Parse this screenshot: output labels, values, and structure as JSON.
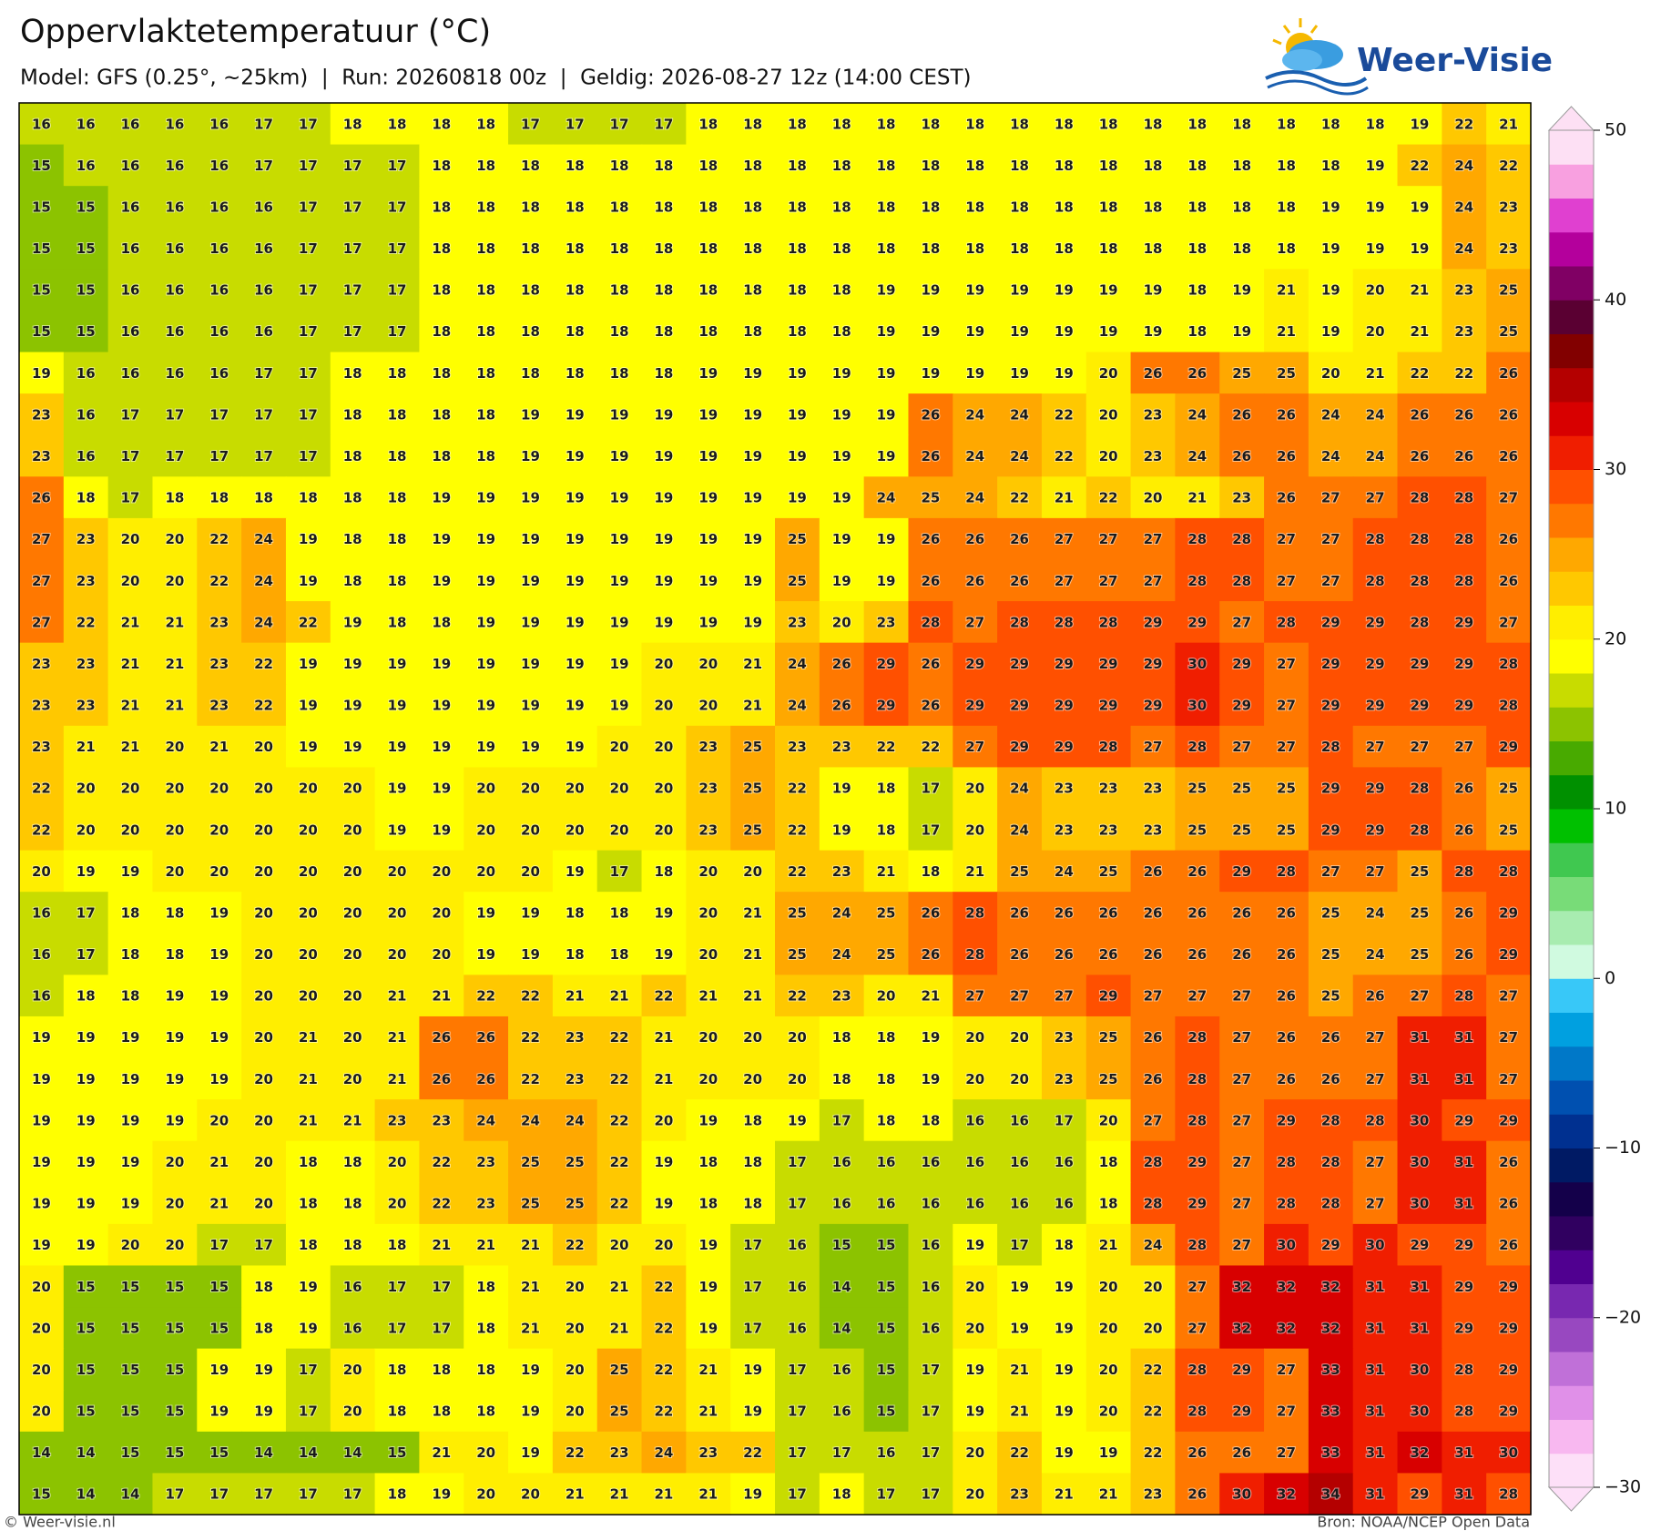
{
  "header": {
    "title": "Oppervlaktetemperatuur (°C)",
    "subtitle": "Model: GFS (0.25°, ~25km)  |  Run: 20260818 00z  |  Geldig: 2026-08-27 12z (14:00 CEST)"
  },
  "logo": "Weer-Visie",
  "map": {
    "values": [
      [
        16,
        16,
        16,
        16,
        16,
        17,
        17,
        18,
        18,
        18,
        18,
        17,
        17,
        17,
        17,
        18,
        18,
        18,
        18,
        18,
        18,
        18,
        18,
        18,
        18,
        18,
        18,
        18,
        18,
        18,
        18,
        19,
        22,
        21
      ],
      [
        15,
        16,
        16,
        16,
        16,
        17,
        17,
        17,
        17,
        18,
        18,
        18,
        18,
        18,
        18,
        18,
        18,
        18,
        18,
        18,
        18,
        18,
        18,
        18,
        18,
        18,
        18,
        18,
        18,
        18,
        19,
        22,
        24,
        22
      ],
      [
        15,
        15,
        16,
        16,
        16,
        16,
        17,
        17,
        17,
        18,
        18,
        18,
        18,
        18,
        18,
        18,
        18,
        18,
        18,
        18,
        18,
        18,
        18,
        18,
        18,
        18,
        18,
        18,
        18,
        19,
        19,
        19,
        24,
        23
      ],
      [
        15,
        15,
        16,
        16,
        16,
        16,
        17,
        17,
        17,
        18,
        18,
        18,
        18,
        18,
        18,
        18,
        18,
        18,
        18,
        18,
        18,
        18,
        18,
        18,
        18,
        18,
        18,
        18,
        18,
        19,
        19,
        19,
        24,
        23
      ],
      [
        15,
        15,
        16,
        16,
        16,
        16,
        17,
        17,
        17,
        18,
        18,
        18,
        18,
        18,
        18,
        18,
        18,
        18,
        18,
        19,
        19,
        19,
        19,
        19,
        19,
        19,
        18,
        19,
        21,
        19,
        20,
        21,
        23,
        25
      ],
      [
        15,
        15,
        16,
        16,
        16,
        16,
        17,
        17,
        17,
        18,
        18,
        18,
        18,
        18,
        18,
        18,
        18,
        18,
        18,
        19,
        19,
        19,
        19,
        19,
        19,
        19,
        18,
        19,
        21,
        19,
        20,
        21,
        23,
        25
      ],
      [
        19,
        16,
        16,
        16,
        16,
        17,
        17,
        18,
        18,
        18,
        18,
        18,
        18,
        18,
        18,
        19,
        19,
        19,
        19,
        19,
        19,
        19,
        19,
        19,
        20,
        26,
        26,
        25,
        25,
        20,
        21,
        22,
        22,
        26
      ],
      [
        23,
        16,
        17,
        17,
        17,
        17,
        17,
        18,
        18,
        18,
        18,
        19,
        19,
        19,
        19,
        19,
        19,
        19,
        19,
        19,
        26,
        24,
        24,
        22,
        20,
        23,
        24,
        26,
        26,
        24,
        24,
        26,
        26,
        26
      ],
      [
        23,
        16,
        17,
        17,
        17,
        17,
        17,
        18,
        18,
        18,
        18,
        19,
        19,
        19,
        19,
        19,
        19,
        19,
        19,
        19,
        26,
        24,
        24,
        22,
        20,
        23,
        24,
        26,
        26,
        24,
        24,
        26,
        26,
        26
      ],
      [
        26,
        18,
        17,
        18,
        18,
        18,
        18,
        18,
        18,
        19,
        19,
        19,
        19,
        19,
        19,
        19,
        19,
        19,
        19,
        24,
        25,
        24,
        22,
        21,
        22,
        20,
        21,
        23,
        26,
        27,
        27,
        28,
        28,
        27
      ],
      [
        27,
        23,
        20,
        20,
        22,
        24,
        19,
        18,
        18,
        19,
        19,
        19,
        19,
        19,
        19,
        19,
        19,
        25,
        19,
        19,
        26,
        26,
        26,
        27,
        27,
        27,
        28,
        28,
        27,
        27,
        28,
        28,
        28,
        26
      ],
      [
        27,
        23,
        20,
        20,
        22,
        24,
        19,
        18,
        18,
        19,
        19,
        19,
        19,
        19,
        19,
        19,
        19,
        25,
        19,
        19,
        26,
        26,
        26,
        27,
        27,
        27,
        28,
        28,
        27,
        27,
        28,
        28,
        28,
        26
      ],
      [
        27,
        22,
        21,
        21,
        23,
        24,
        22,
        19,
        18,
        18,
        19,
        19,
        19,
        19,
        19,
        19,
        19,
        23,
        20,
        23,
        28,
        27,
        28,
        28,
        28,
        29,
        29,
        27,
        28,
        29,
        29,
        28,
        29,
        27
      ],
      [
        23,
        23,
        21,
        21,
        23,
        22,
        19,
        19,
        19,
        19,
        19,
        19,
        19,
        19,
        20,
        20,
        21,
        24,
        26,
        29,
        26,
        29,
        29,
        29,
        29,
        29,
        30,
        29,
        27,
        29,
        29,
        29,
        29,
        28
      ],
      [
        23,
        23,
        21,
        21,
        23,
        22,
        19,
        19,
        19,
        19,
        19,
        19,
        19,
        19,
        20,
        20,
        21,
        24,
        26,
        29,
        26,
        29,
        29,
        29,
        29,
        29,
        30,
        29,
        27,
        29,
        29,
        29,
        29,
        28
      ],
      [
        23,
        21,
        21,
        20,
        21,
        20,
        19,
        19,
        19,
        19,
        19,
        19,
        19,
        20,
        20,
        23,
        25,
        23,
        23,
        22,
        22,
        27,
        29,
        29,
        28,
        27,
        28,
        27,
        27,
        28,
        27,
        27,
        27,
        29
      ],
      [
        22,
        20,
        20,
        20,
        20,
        20,
        20,
        20,
        19,
        19,
        20,
        20,
        20,
        20,
        20,
        23,
        25,
        22,
        19,
        18,
        17,
        20,
        24,
        23,
        23,
        23,
        25,
        25,
        25,
        29,
        29,
        28,
        26,
        25
      ],
      [
        22,
        20,
        20,
        20,
        20,
        20,
        20,
        20,
        19,
        19,
        20,
        20,
        20,
        20,
        20,
        23,
        25,
        22,
        19,
        18,
        17,
        20,
        24,
        23,
        23,
        23,
        25,
        25,
        25,
        29,
        29,
        28,
        26,
        25
      ],
      [
        20,
        19,
        19,
        20,
        20,
        20,
        20,
        20,
        20,
        20,
        20,
        20,
        19,
        17,
        18,
        20,
        20,
        22,
        23,
        21,
        18,
        21,
        25,
        24,
        25,
        26,
        26,
        29,
        28,
        27,
        27,
        25,
        28,
        28
      ],
      [
        16,
        17,
        18,
        18,
        19,
        20,
        20,
        20,
        20,
        20,
        19,
        19,
        18,
        18,
        19,
        20,
        21,
        25,
        24,
        25,
        26,
        28,
        26,
        26,
        26,
        26,
        26,
        26,
        26,
        25,
        24,
        25,
        26,
        29
      ],
      [
        16,
        17,
        18,
        18,
        19,
        20,
        20,
        20,
        20,
        20,
        19,
        19,
        18,
        18,
        19,
        20,
        21,
        25,
        24,
        25,
        26,
        28,
        26,
        26,
        26,
        26,
        26,
        26,
        26,
        25,
        24,
        25,
        26,
        29
      ],
      [
        16,
        18,
        18,
        19,
        19,
        20,
        20,
        20,
        21,
        21,
        22,
        22,
        21,
        21,
        22,
        21,
        21,
        22,
        23,
        20,
        21,
        27,
        27,
        27,
        29,
        27,
        27,
        27,
        26,
        25,
        26,
        27,
        28,
        27
      ],
      [
        19,
        19,
        19,
        19,
        19,
        20,
        21,
        20,
        21,
        26,
        26,
        22,
        23,
        22,
        21,
        20,
        20,
        20,
        18,
        18,
        19,
        20,
        20,
        23,
        25,
        26,
        28,
        27,
        26,
        26,
        27,
        31,
        31,
        27
      ],
      [
        19,
        19,
        19,
        19,
        19,
        20,
        21,
        20,
        21,
        26,
        26,
        22,
        23,
        22,
        21,
        20,
        20,
        20,
        18,
        18,
        19,
        20,
        20,
        23,
        25,
        26,
        28,
        27,
        26,
        26,
        27,
        31,
        31,
        27
      ],
      [
        19,
        19,
        19,
        19,
        20,
        20,
        21,
        21,
        23,
        23,
        24,
        24,
        24,
        22,
        20,
        19,
        18,
        19,
        17,
        18,
        18,
        16,
        16,
        17,
        20,
        27,
        28,
        27,
        29,
        28,
        28,
        30,
        29,
        29
      ],
      [
        19,
        19,
        19,
        20,
        21,
        20,
        18,
        18,
        20,
        22,
        23,
        25,
        25,
        22,
        19,
        18,
        18,
        17,
        16,
        16,
        16,
        16,
        16,
        16,
        18,
        28,
        29,
        27,
        28,
        28,
        27,
        30,
        31,
        26
      ],
      [
        19,
        19,
        19,
        20,
        21,
        20,
        18,
        18,
        20,
        22,
        23,
        25,
        25,
        22,
        19,
        18,
        18,
        17,
        16,
        16,
        16,
        16,
        16,
        16,
        18,
        28,
        29,
        27,
        28,
        28,
        27,
        30,
        31,
        26
      ],
      [
        19,
        19,
        20,
        20,
        17,
        17,
        18,
        18,
        18,
        21,
        21,
        21,
        22,
        20,
        20,
        19,
        17,
        16,
        15,
        15,
        16,
        19,
        17,
        18,
        21,
        24,
        28,
        27,
        30,
        29,
        30,
        29,
        29,
        26
      ],
      [
        20,
        15,
        15,
        15,
        15,
        18,
        19,
        16,
        17,
        17,
        18,
        21,
        20,
        21,
        22,
        19,
        17,
        16,
        14,
        15,
        16,
        20,
        19,
        19,
        20,
        20,
        27,
        32,
        32,
        32,
        31,
        31,
        29,
        29
      ],
      [
        20,
        15,
        15,
        15,
        15,
        18,
        19,
        16,
        17,
        17,
        18,
        21,
        20,
        21,
        22,
        19,
        17,
        16,
        14,
        15,
        16,
        20,
        19,
        19,
        20,
        20,
        27,
        32,
        32,
        32,
        31,
        31,
        29,
        29
      ],
      [
        20,
        15,
        15,
        15,
        19,
        19,
        17,
        20,
        18,
        18,
        18,
        19,
        20,
        25,
        22,
        21,
        19,
        17,
        16,
        15,
        17,
        19,
        21,
        19,
        20,
        22,
        28,
        29,
        27,
        33,
        31,
        30,
        28,
        29
      ],
      [
        20,
        15,
        15,
        15,
        19,
        19,
        17,
        20,
        18,
        18,
        18,
        19,
        20,
        25,
        22,
        21,
        19,
        17,
        16,
        15,
        17,
        19,
        21,
        19,
        20,
        22,
        28,
        29,
        27,
        33,
        31,
        30,
        28,
        29
      ],
      [
        14,
        14,
        15,
        15,
        15,
        14,
        14,
        14,
        15,
        21,
        20,
        19,
        22,
        23,
        24,
        23,
        22,
        17,
        17,
        16,
        17,
        20,
        22,
        19,
        19,
        22,
        26,
        26,
        27,
        33,
        31,
        32,
        31,
        30
      ],
      [
        15,
        14,
        14,
        17,
        17,
        17,
        17,
        17,
        18,
        19,
        20,
        20,
        21,
        21,
        21,
        21,
        19,
        17,
        18,
        17,
        17,
        20,
        23,
        21,
        21,
        23,
        26,
        30,
        32,
        34,
        31,
        29,
        31,
        28
      ]
    ]
  },
  "colorbar": {
    "lim": [
      -30,
      50
    ],
    "ticks": [
      50,
      40,
      30,
      20,
      10,
      0,
      {
        "value": -10,
        "label": "−10"
      },
      {
        "value": -20,
        "label": "−20"
      },
      {
        "value": -30,
        "label": "−30"
      }
    ],
    "colors": [
      "#fde0f8",
      "#f8b8f0",
      "#e090e8",
      "#c070d8",
      "#9848c0",
      "#7828b0",
      "#500090",
      "#300060",
      "#14004a",
      "#001a64",
      "#003090",
      "#0050b0",
      "#0078c8",
      "#00a0e0",
      "#38c8f8",
      "#d0fae0",
      "#a8ecb0",
      "#78dc78",
      "#40c850",
      "#00c000",
      "#009000",
      "#48aa00",
      "#8cc300",
      "#c8dc00",
      "#ffff00",
      "#ffee00",
      "#ffc800",
      "#ffa800",
      "#ff7800",
      "#ff5000",
      "#f01e00",
      "#d80000",
      "#b40000",
      "#820000",
      "#5a0032",
      "#800064",
      "#b4009c",
      "#e040d0",
      "#f8a0e0",
      "#fde0f4"
    ]
  },
  "footer": {
    "left": "© Weer-visie.nl",
    "right": "Bron: NOAA/NCEP Open Data"
  }
}
